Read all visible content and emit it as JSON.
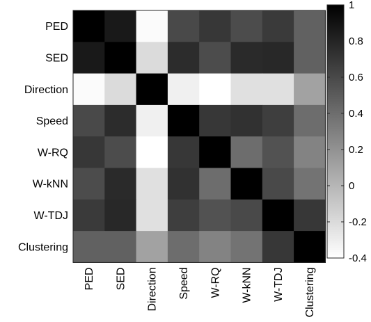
{
  "chart_data": {
    "type": "heatmap",
    "title": "",
    "xlabel": "",
    "ylabel": "",
    "categories": [
      "PED",
      "SED",
      "Direction",
      "Speed",
      "W-RQ",
      "W-kNN",
      "W-TDJ",
      "Clustering"
    ],
    "x_categories": [
      "PED",
      "SED",
      "Direction",
      "Speed",
      "W-RQ",
      "W-kNN",
      "W-TDJ",
      "Clustering"
    ],
    "y_categories": [
      "PED",
      "SED",
      "Direction",
      "Speed",
      "W-RQ",
      "W-kNN",
      "W-TDJ",
      "Clustering"
    ],
    "matrix": [
      [
        1.0,
        0.86,
        -0.38,
        0.6,
        0.7,
        0.58,
        0.68,
        0.47
      ],
      [
        0.86,
        1.0,
        -0.2,
        0.76,
        0.58,
        0.77,
        0.78,
        0.47
      ],
      [
        -0.38,
        -0.2,
        1.0,
        -0.32,
        -0.4,
        -0.23,
        -0.23,
        0.11
      ],
      [
        0.6,
        0.76,
        -0.32,
        1.0,
        0.7,
        0.73,
        0.66,
        0.4
      ],
      [
        0.7,
        0.58,
        -0.4,
        0.7,
        1.0,
        0.4,
        0.55,
        0.28
      ],
      [
        0.58,
        0.77,
        -0.23,
        0.73,
        0.4,
        1.0,
        0.6,
        0.37
      ],
      [
        0.68,
        0.78,
        -0.23,
        0.66,
        0.55,
        0.6,
        1.0,
        0.7
      ],
      [
        0.47,
        0.47,
        0.11,
        0.4,
        0.28,
        0.37,
        0.7,
        1.0
      ]
    ],
    "colorbar": {
      "min": -0.4,
      "max": 1,
      "ticks": [
        1,
        0.8,
        0.6,
        0.4,
        0.2,
        0,
        -0.2,
        -0.4
      ],
      "tick_labels": [
        "1",
        "0.8",
        "0.6",
        "0.4",
        "0.2",
        "0",
        "-0.2",
        "-0.4"
      ]
    },
    "colormap": "gray-reversed",
    "colors": {
      "low": "#ffffff",
      "high": "#000000"
    }
  }
}
